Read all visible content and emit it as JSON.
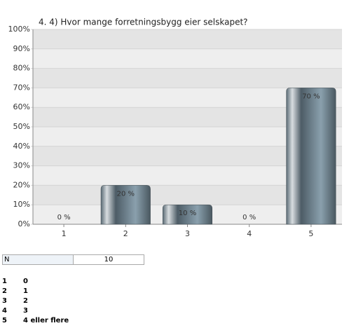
{
  "chart_data": {
    "type": "bar",
    "title": "4. 4) Hvor mange forretningsbygg eier selskapet?",
    "categories": [
      "1",
      "2",
      "3",
      "4",
      "5"
    ],
    "values": [
      0,
      20,
      10,
      0,
      70
    ],
    "value_labels": [
      "0 %",
      "20 %",
      "10 %",
      "0 %",
      "70 %"
    ],
    "color": "#6f8390",
    "ylim": [
      0,
      100
    ],
    "yticks": [
      {
        "value": 0,
        "label": "0%"
      },
      {
        "value": 10,
        "label": "10%"
      },
      {
        "value": 20,
        "label": "20%"
      },
      {
        "value": 30,
        "label": "30%"
      },
      {
        "value": 40,
        "label": "40%"
      },
      {
        "value": 50,
        "label": "50%"
      },
      {
        "value": 60,
        "label": "60%"
      },
      {
        "value": 70,
        "label": "70%"
      },
      {
        "value": 80,
        "label": "80%"
      },
      {
        "value": 90,
        "label": "90%"
      },
      {
        "value": 100,
        "label": "100%"
      }
    ],
    "grid": true
  },
  "n_table": {
    "label": "N",
    "value": 10
  },
  "legend": [
    {
      "key": "1",
      "label": "0"
    },
    {
      "key": "2",
      "label": "1"
    },
    {
      "key": "3",
      "label": "2"
    },
    {
      "key": "4",
      "label": "3"
    },
    {
      "key": "5",
      "label": "4 eller flere"
    }
  ]
}
